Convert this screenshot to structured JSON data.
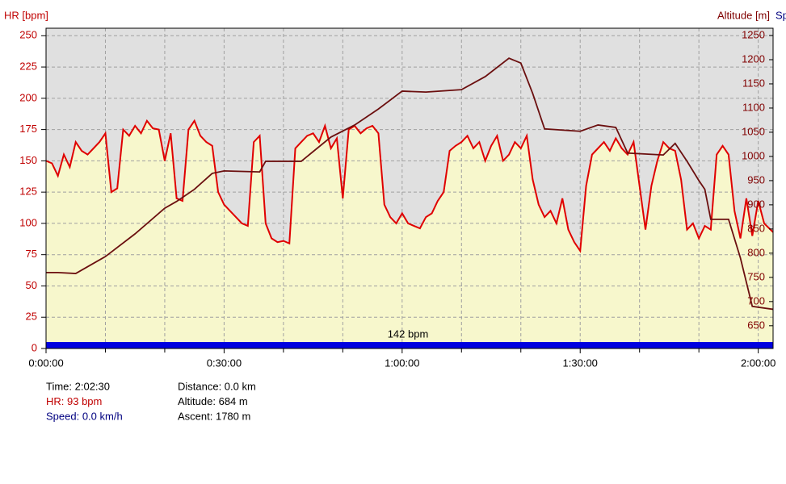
{
  "chart_data": {
    "type": "line",
    "ylabel": "HR [bpm]",
    "y2label": "Altitude [m]",
    "y3label": "Sp",
    "annotation": "142 bpm",
    "xlim": [
      0,
      7350
    ],
    "xticks": [
      {
        "value": 0,
        "label": "0:00:00"
      },
      {
        "value": 1800,
        "label": "0:30:00"
      },
      {
        "value": 3600,
        "label": "1:00:00"
      },
      {
        "value": 5400,
        "label": "1:30:00"
      },
      {
        "value": 7200,
        "label": "2:00:00"
      }
    ],
    "xminorticks": [
      600,
      1200,
      2400,
      3000,
      4200,
      4800,
      6000,
      6600
    ],
    "ylim": [
      0,
      256
    ],
    "yticks": [
      0,
      25,
      50,
      75,
      100,
      125,
      150,
      175,
      200,
      225,
      250
    ],
    "y2lim": [
      603,
      1265
    ],
    "y2ticks": [
      650,
      700,
      750,
      800,
      850,
      900,
      950,
      1000,
      1050,
      1100,
      1150,
      1200,
      1250
    ],
    "grid": true,
    "background": "#e0e0e0",
    "area_color": "#f7f7cc",
    "annotation_color": "#0000e0",
    "series": [
      {
        "name": "HR",
        "color": "#e00000",
        "x": [
          0,
          60,
          120,
          180,
          240,
          300,
          360,
          420,
          480,
          540,
          600,
          660,
          720,
          780,
          840,
          900,
          960,
          1020,
          1080,
          1140,
          1200,
          1260,
          1320,
          1380,
          1440,
          1500,
          1560,
          1620,
          1680,
          1740,
          1800,
          1860,
          1920,
          1980,
          2040,
          2100,
          2160,
          2220,
          2280,
          2340,
          2400,
          2460,
          2520,
          2580,
          2640,
          2700,
          2760,
          2820,
          2880,
          2940,
          3000,
          3060,
          3120,
          3180,
          3240,
          3300,
          3360,
          3420,
          3480,
          3540,
          3600,
          3660,
          3720,
          3780,
          3840,
          3900,
          3960,
          4020,
          4080,
          4140,
          4200,
          4260,
          4320,
          4380,
          4440,
          4500,
          4560,
          4620,
          4680,
          4740,
          4800,
          4860,
          4920,
          4980,
          5040,
          5100,
          5160,
          5220,
          5280,
          5340,
          5400,
          5460,
          5520,
          5580,
          5640,
          5700,
          5760,
          5820,
          5880,
          5940,
          6000,
          6060,
          6120,
          6180,
          6240,
          6300,
          6360,
          6420,
          6480,
          6540,
          6600,
          6660,
          6720,
          6780,
          6840,
          6900,
          6960,
          7020,
          7080,
          7140,
          7200,
          7260,
          7350
        ],
        "values": [
          150,
          148,
          138,
          155,
          145,
          165,
          158,
          155,
          160,
          165,
          172,
          125,
          128,
          175,
          170,
          178,
          172,
          182,
          176,
          175,
          150,
          172,
          120,
          118,
          175,
          182,
          170,
          165,
          162,
          125,
          115,
          110,
          105,
          100,
          98,
          165,
          170,
          100,
          88,
          85,
          86,
          84,
          160,
          165,
          170,
          172,
          165,
          178,
          160,
          168,
          120,
          175,
          178,
          172,
          176,
          178,
          172,
          115,
          105,
          100,
          108,
          100,
          98,
          96,
          105,
          108,
          118,
          125,
          158,
          162,
          165,
          170,
          160,
          165,
          150,
          162,
          170,
          150,
          155,
          165,
          160,
          170,
          135,
          115,
          105,
          110,
          100,
          120,
          95,
          85,
          78,
          130,
          155,
          160,
          165,
          158,
          168,
          160,
          155,
          165,
          130,
          95,
          130,
          150,
          165,
          160,
          158,
          135,
          95,
          100,
          88,
          98,
          95,
          155,
          162,
          155,
          110,
          88,
          120,
          90,
          118,
          100,
          93
        ]
      },
      {
        "name": "Altitude",
        "color": "#6b0f0f",
        "axis": "y2",
        "x": [
          0,
          120,
          300,
          600,
          900,
          1200,
          1320,
          1500,
          1680,
          1800,
          2160,
          2220,
          2580,
          2880,
          3120,
          3360,
          3600,
          3840,
          4200,
          4440,
          4680,
          4800,
          4920,
          5040,
          5400,
          5580,
          5760,
          5880,
          6240,
          6360,
          6480,
          6600,
          6660,
          6720,
          6900,
          7020,
          7140,
          7350
        ],
        "values": [
          760,
          760,
          758,
          793,
          840,
          893,
          907,
          932,
          965,
          970,
          968,
          990,
          990,
          1040,
          1065,
          1098,
          1135,
          1133,
          1138,
          1165,
          1203,
          1193,
          1130,
          1057,
          1052,
          1065,
          1060,
          1007,
          1003,
          1027,
          990,
          950,
          932,
          870,
          870,
          790,
          690,
          684
        ]
      }
    ],
    "info": [
      {
        "text": "Time: 2:02:30",
        "color": "#000000"
      },
      {
        "text": "HR: 93 bpm",
        "color": "#c00000"
      },
      {
        "text": "Speed: 0.0 km/h",
        "color": "#000080"
      },
      {
        "text": "Distance: 0.0 km",
        "color": "#000000"
      },
      {
        "text": "Altitude: 684 m",
        "color": "#000000"
      },
      {
        "text": "Ascent: 1780 m",
        "color": "#000000"
      }
    ]
  }
}
